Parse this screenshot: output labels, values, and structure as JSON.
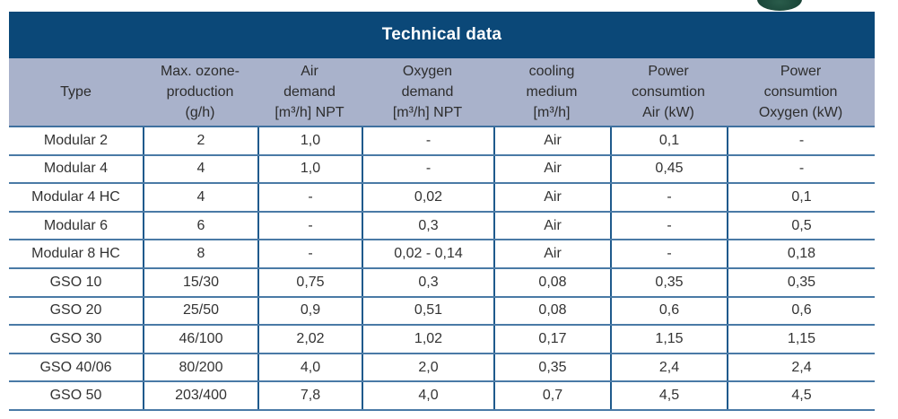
{
  "decorations": {
    "green_object_color": "#1d4a3c"
  },
  "table": {
    "title": "Technical data",
    "colors": {
      "title_bar_bg": "#0b4878",
      "title_text": "#ffffff",
      "header_band_bg": "#a9b2cb",
      "header_text": "#2d2d2d",
      "body_text": "#333333",
      "row_line": "#4a7aa6",
      "column_line": "#1f5a8c"
    },
    "columns": [
      {
        "id": "type",
        "lines": [
          "Type"
        ]
      },
      {
        "id": "max-ozone-production",
        "lines": [
          "Max. ozone-",
          "production",
          "(g/h)"
        ]
      },
      {
        "id": "air-demand",
        "lines": [
          "Air",
          "demand",
          "[m³/h] NPT"
        ]
      },
      {
        "id": "oxygen-demand",
        "lines": [
          "Oxygen",
          "demand",
          "[m³/h] NPT"
        ]
      },
      {
        "id": "cooling-medium",
        "lines": [
          "cooling",
          "medium",
          "[m³/h]"
        ]
      },
      {
        "id": "power-consumtion-air",
        "lines": [
          "Power",
          "consumtion",
          "Air (kW)"
        ]
      },
      {
        "id": "power-consumtion-oxygen",
        "lines": [
          "Power",
          "consumtion",
          "Oxygen (kW)"
        ]
      }
    ],
    "rows": [
      {
        "cells": [
          "Modular 2",
          "2",
          "1,0",
          "-",
          "Air",
          "0,1",
          "-"
        ]
      },
      {
        "cells": [
          "Modular 4",
          "4",
          "1,0",
          "-",
          "Air",
          "0,45",
          "-"
        ]
      },
      {
        "cells": [
          "Modular 4 HC",
          "4",
          "-",
          "0,02",
          "Air",
          "-",
          "0,1"
        ]
      },
      {
        "cells": [
          "Modular 6",
          "6",
          "-",
          "0,3",
          "Air",
          "-",
          "0,5"
        ]
      },
      {
        "cells": [
          "Modular 8 HC",
          "8",
          "-",
          "0,02 - 0,14",
          "Air",
          "-",
          "0,18"
        ]
      },
      {
        "cells": [
          "GSO 10",
          "15/30",
          "0,75",
          "0,3",
          "0,08",
          "0,35",
          "0,35"
        ]
      },
      {
        "cells": [
          "GSO 20",
          "25/50",
          "0,9",
          "0,51",
          "0,08",
          "0,6",
          "0,6"
        ]
      },
      {
        "cells": [
          "GSO 30",
          "46/100",
          "2,02",
          "1,02",
          "0,17",
          "1,15",
          "1,15"
        ]
      },
      {
        "cells": [
          "GSO 40/06",
          "80/200",
          "4,0",
          "2,0",
          "0,35",
          "2,4",
          "2,4"
        ]
      },
      {
        "cells": [
          "GSO 50",
          "203/400",
          "7,8",
          "4,0",
          "0,7",
          "4,5",
          "4,5"
        ]
      }
    ]
  }
}
